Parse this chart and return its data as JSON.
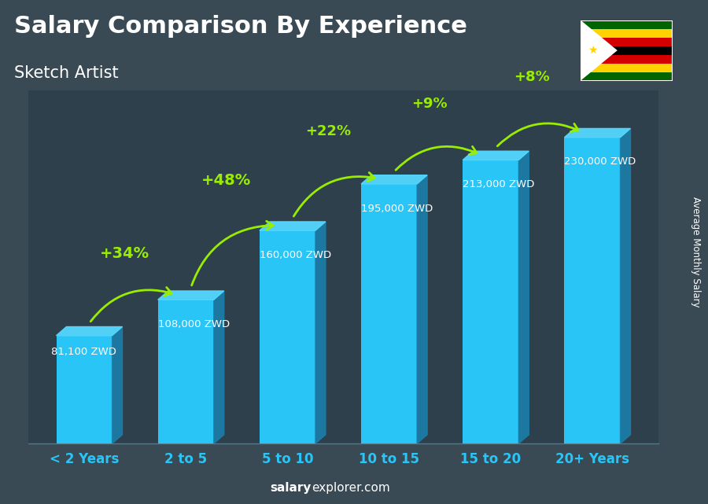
{
  "categories": [
    "< 2 Years",
    "2 to 5",
    "5 to 10",
    "10 to 15",
    "15 to 20",
    "20+ Years"
  ],
  "values": [
    81100,
    108000,
    160000,
    195000,
    213000,
    230000
  ],
  "value_labels": [
    "81,100 ZWD",
    "108,000 ZWD",
    "160,000 ZWD",
    "195,000 ZWD",
    "213,000 ZWD",
    "230,000 ZWD"
  ],
  "pct_labels": [
    "+34%",
    "+48%",
    "+22%",
    "+9%",
    "+8%"
  ],
  "title_line1": "Salary Comparison By Experience",
  "title_line2": "Sketch Artist",
  "ylabel": "Average Monthly Salary",
  "footer_bold": "salary",
  "footer_normal": "explorer.com",
  "bar_face_color": "#29c5f6",
  "bar_right_color": "#1a7faa",
  "bar_top_color": "#55d8ff",
  "text_color": "#ffffff",
  "pct_color": "#99ee00",
  "value_color": "#ffffff",
  "xtick_color": "#29c5f6",
  "max_val": 265000,
  "bar_width": 0.55,
  "bar_3d_depth": 0.08,
  "bg_color": "#3a4a55",
  "figsize": [
    9.0,
    6.41
  ],
  "dpi": 100
}
